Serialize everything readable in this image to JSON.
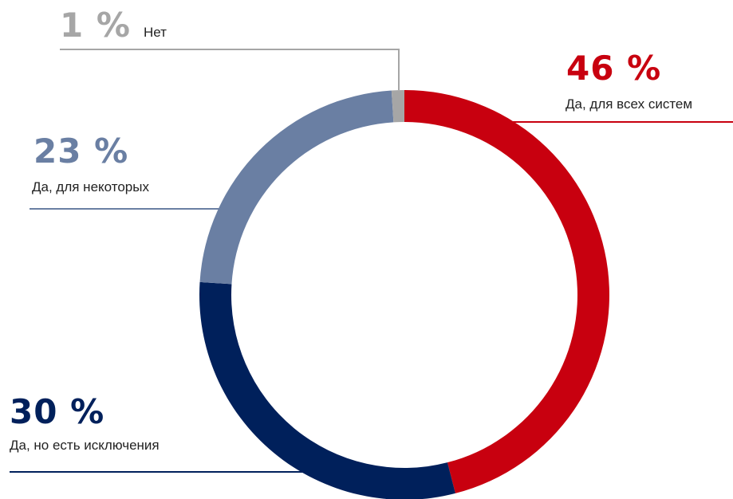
{
  "chart_data": {
    "type": "donut",
    "categories": [
      "Да, для всех систем",
      "Да, но есть исключения",
      "Да, для некоторых",
      "Нет"
    ],
    "values": [
      46,
      30,
      23,
      1
    ],
    "value_labels": [
      "46 %",
      "30 %",
      "23 %",
      "1 %"
    ],
    "colors": [
      "#c8000f",
      "#00205b",
      "#6a7fa3",
      "#a6a6a6"
    ]
  }
}
